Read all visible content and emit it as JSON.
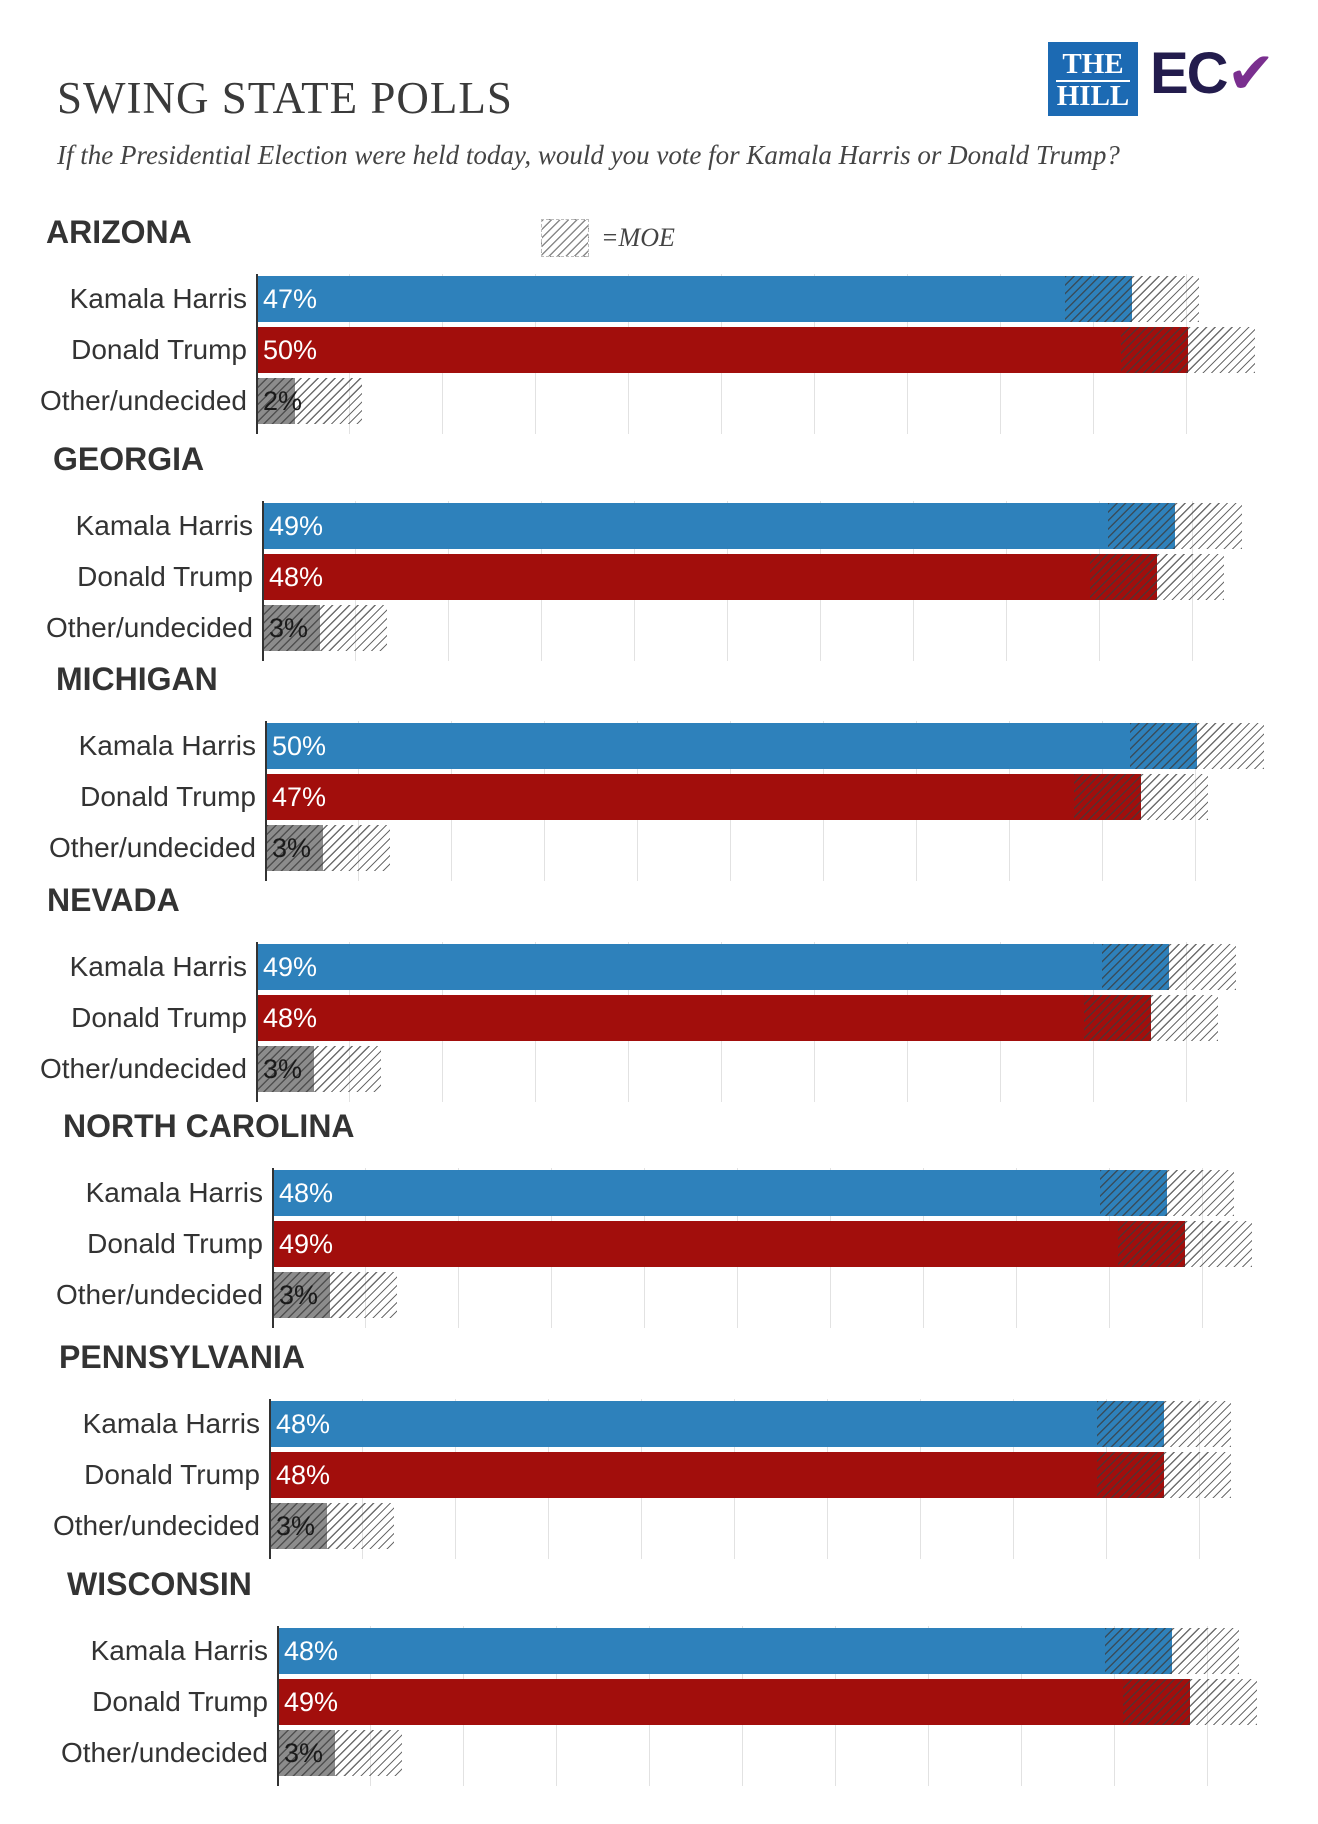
{
  "header": {
    "title": "SWING STATE POLLS",
    "subtitle": "If the Presidential Election were held today, would you vote for Kamala Harris or Donald Trump?",
    "logo_hill_line1": "THE",
    "logo_hill_line2": "HILL",
    "logo_ecp": "EC"
  },
  "legend": {
    "label": "=MOE"
  },
  "colors": {
    "harris": "#2e81bb",
    "trump": "#a20e0c",
    "other": "#8c8c8c",
    "moe_hatch": "#6e6e6e",
    "hill_blue": "#1c6ab3",
    "ecp_navy": "#231c4d",
    "ecp_purple": "#7a2f8f"
  },
  "chart_data": {
    "type": "bar",
    "orientation": "horizontal",
    "title": "SWING STATE POLLS",
    "subtitle": "If the Presidential Election were held today, would you vote for Kamala Harris or Donald Trump?",
    "moe_label": "=MOE",
    "moe_points": 3.6,
    "xlim": [
      0,
      53
    ],
    "categories": [
      "Kamala Harris",
      "Donald Trump",
      "Other/undecided"
    ],
    "states": [
      {
        "name": "ARIZONA",
        "values": [
          47,
          50,
          2
        ],
        "labels": [
          "47%",
          "50%",
          "2%"
        ]
      },
      {
        "name": "GEORGIA",
        "values": [
          49,
          48,
          3
        ],
        "labels": [
          "49%",
          "48%",
          "3%"
        ]
      },
      {
        "name": "MICHIGAN",
        "values": [
          50,
          47,
          3
        ],
        "labels": [
          "50%",
          "47%",
          "3%"
        ]
      },
      {
        "name": "NEVADA",
        "values": [
          49,
          48,
          3
        ],
        "labels": [
          "49%",
          "48%",
          "3%"
        ]
      },
      {
        "name": "NORTH CAROLINA",
        "values": [
          48,
          49,
          3
        ],
        "labels": [
          "48%",
          "49%",
          "3%"
        ]
      },
      {
        "name": "PENNSYLVANIA",
        "values": [
          48,
          48,
          3
        ],
        "labels": [
          "48%",
          "48%",
          "3%"
        ]
      },
      {
        "name": "WISCONSIN",
        "values": [
          48,
          49,
          3
        ],
        "labels": [
          "48%",
          "49%",
          "3%"
        ]
      }
    ]
  }
}
